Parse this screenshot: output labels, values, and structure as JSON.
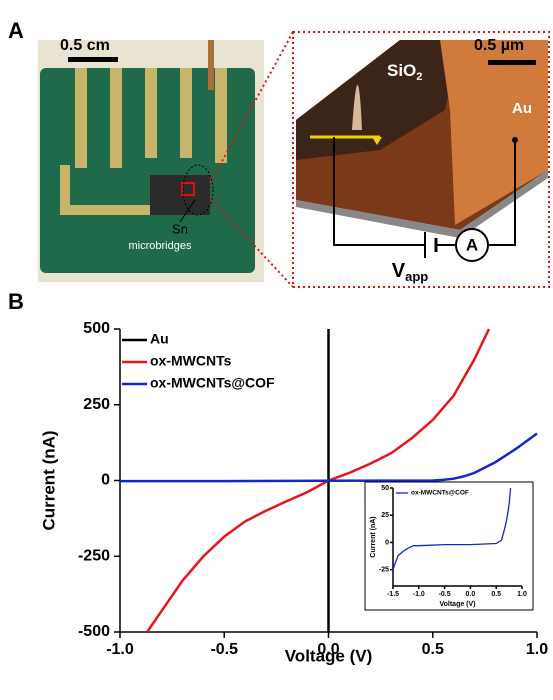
{
  "panel_a": {
    "label": "A",
    "scale_left": "0.5 cm",
    "sn": "Sn",
    "microbridges": "microbridges",
    "sio2": "SiO",
    "sio2_sub": "2",
    "scale_right": "0.5 µm",
    "au": "Au",
    "v": "V",
    "v_sub": "app",
    "ammeter": "A"
  },
  "panel_b": {
    "label": "B"
  },
  "chart_data": [
    {
      "type": "line",
      "xlabel": "Voltage (V)",
      "ylabel": "Current (nA)",
      "xlim": [
        -1,
        1
      ],
      "ylim": [
        -500,
        500
      ],
      "xticks": [
        {
          "value": -1,
          "label": "-1.0"
        },
        {
          "value": -0.5,
          "label": "-0.5"
        },
        {
          "value": 0,
          "label": "0.0"
        },
        {
          "value": 0.5,
          "label": "0.5"
        },
        {
          "value": 1,
          "label": "1.0"
        }
      ],
      "yticks": [
        -500,
        -250,
        0,
        250,
        500
      ],
      "legend": "upper left",
      "series": [
        {
          "name": "Au",
          "color": "#000000",
          "x": [
            0,
            0
          ],
          "values": [
            -500,
            500
          ]
        },
        {
          "name": "ox-MWCNTs",
          "color": "#e8141c",
          "x": [
            -0.87,
            -0.8,
            -0.7,
            -0.6,
            -0.5,
            -0.4,
            -0.3,
            -0.2,
            -0.1,
            0,
            0.1,
            0.2,
            0.3,
            0.4,
            0.5,
            0.6,
            0.7,
            0.77
          ],
          "values": [
            -500,
            -430,
            -330,
            -250,
            -185,
            -135,
            -100,
            -68,
            -38,
            0,
            25,
            55,
            90,
            140,
            200,
            280,
            400,
            500
          ]
        },
        {
          "name": "ox-MWCNTs@COF",
          "color": "#1426c8",
          "x": [
            -1,
            -0.5,
            0,
            0.5,
            0.55,
            0.6,
            0.65,
            0.7,
            0.8,
            0.9,
            1
          ],
          "values": [
            -2,
            -2,
            -1,
            0,
            2,
            6,
            14,
            25,
            60,
            105,
            155
          ]
        }
      ]
    },
    {
      "type": "line",
      "xlabel": "Voltage (V)",
      "ylabel": "Current (nA)",
      "xlim": [
        -1.5,
        1
      ],
      "ylim": [
        -40,
        50
      ],
      "xticks": [
        {
          "value": -1.5,
          "label": "-1.5"
        },
        {
          "value": -1,
          "label": "-1.0"
        },
        {
          "value": -0.5,
          "label": "-0.5"
        },
        {
          "value": 0,
          "label": "0.0"
        },
        {
          "value": 0.5,
          "label": "0.5"
        },
        {
          "value": 1,
          "label": "1.0"
        }
      ],
      "yticks": [
        -25,
        0,
        25,
        50
      ],
      "legend": "upper left",
      "series": [
        {
          "name": "ox-MWCNTs@COF",
          "color": "#1426c8",
          "x": [
            -1.5,
            -1.45,
            -1.4,
            -1.3,
            -1.2,
            -1.1,
            -1,
            -0.5,
            0,
            0.5,
            0.6,
            0.65,
            0.7,
            0.75,
            0.78
          ],
          "values": [
            -25,
            -18,
            -12,
            -8,
            -5,
            -3,
            -3,
            -2,
            -2,
            -1,
            2,
            10,
            20,
            35,
            50
          ]
        }
      ]
    }
  ]
}
